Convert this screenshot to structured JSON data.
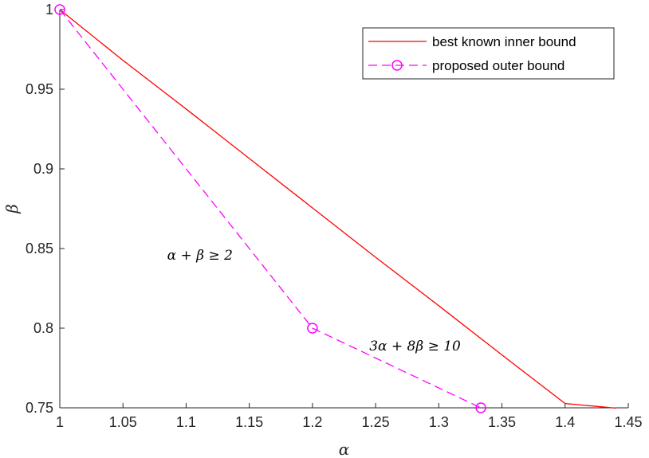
{
  "chart_data": {
    "type": "line",
    "xlabel": "α",
    "ylabel": "β",
    "xlim": [
      1,
      1.45
    ],
    "ylim": [
      0.75,
      1
    ],
    "x_ticks": [
      "1",
      "1.05",
      "1.1",
      "1.15",
      "1.2",
      "1.25",
      "1.3",
      "1.35",
      "1.4",
      "1.45"
    ],
    "y_ticks": [
      "0.75",
      "0.8",
      "0.85",
      "0.9",
      "0.95",
      "1"
    ],
    "grid": false,
    "legend_position": "top-right",
    "series": [
      {
        "name": "best known inner bound",
        "color": "#ff0000",
        "line_style": "solid",
        "marker": "none",
        "x": [
          1.0,
          1.05,
          1.1,
          1.15,
          1.2,
          1.25,
          1.3,
          1.35,
          1.4,
          1.44
        ],
        "y": [
          1.0,
          0.9681,
          0.9376,
          0.9065,
          0.8755,
          0.8445,
          0.8141,
          0.7832,
          0.7527,
          0.7498
        ]
      },
      {
        "name": "proposed outer bound",
        "color": "#ff00ff",
        "line_style": "dashed",
        "marker": "circle",
        "x": [
          1.0,
          1.2,
          1.3333
        ],
        "y": [
          1.0,
          0.8,
          0.75
        ]
      }
    ],
    "annotations": [
      {
        "text": "α + β ≥ 2",
        "x": 1.085,
        "y": 0.843
      },
      {
        "text": "3α + 8β ≥ 10",
        "x": 1.245,
        "y": 0.786
      }
    ]
  }
}
